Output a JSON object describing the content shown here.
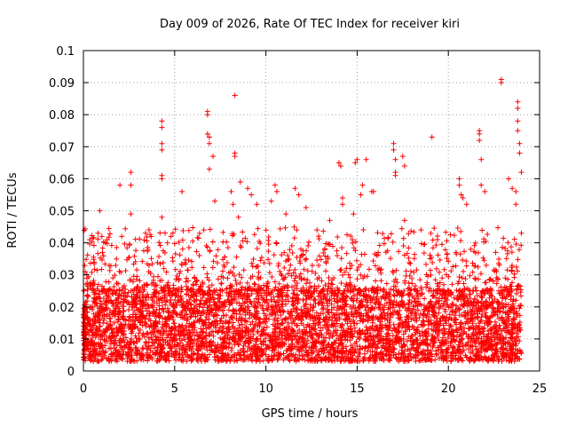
{
  "chart_data": {
    "type": "scatter",
    "title": "Day 009 of 2026, Rate Of TEC Index for receiver kiri",
    "xlabel": "GPS time / hours",
    "ylabel": "ROTI / TECUs",
    "xlim": [
      0,
      25
    ],
    "ylim": [
      0,
      0.1
    ],
    "xticks": [
      0,
      5,
      10,
      15,
      20,
      25
    ],
    "xtick_labels": [
      "0",
      "5",
      "10",
      "15",
      "20",
      "25"
    ],
    "yticks": [
      0,
      0.01,
      0.02,
      0.03,
      0.04,
      0.05,
      0.06,
      0.07,
      0.08,
      0.09,
      0.1
    ],
    "ytick_labels": [
      "0",
      "0.01",
      "0.02",
      "0.03",
      "0.04",
      "0.05",
      "0.06",
      "0.07",
      "0.08",
      "0.09",
      "0.1"
    ],
    "grid": true,
    "marker": "+",
    "color": "#ff0000",
    "data_time_range": [
      0,
      24
    ],
    "bulk_range": [
      0.003,
      0.025
    ],
    "outliers": [
      {
        "x": 0.1,
        "y": 0.031
      },
      {
        "x": 0.8,
        "y": 0.043
      },
      {
        "x": 0.9,
        "y": 0.05
      },
      {
        "x": 1.2,
        "y": 0.04
      },
      {
        "x": 2.0,
        "y": 0.058
      },
      {
        "x": 2.1,
        "y": 0.042
      },
      {
        "x": 2.6,
        "y": 0.062
      },
      {
        "x": 2.6,
        "y": 0.058
      },
      {
        "x": 2.6,
        "y": 0.049
      },
      {
        "x": 3.4,
        "y": 0.043
      },
      {
        "x": 4.3,
        "y": 0.078
      },
      {
        "x": 4.3,
        "y": 0.076
      },
      {
        "x": 4.3,
        "y": 0.071
      },
      {
        "x": 4.3,
        "y": 0.069
      },
      {
        "x": 4.3,
        "y": 0.061
      },
      {
        "x": 4.3,
        "y": 0.06
      },
      {
        "x": 4.3,
        "y": 0.048
      },
      {
        "x": 4.8,
        "y": 0.042
      },
      {
        "x": 5.4,
        "y": 0.056
      },
      {
        "x": 6.6,
        "y": 0.044
      },
      {
        "x": 6.8,
        "y": 0.081
      },
      {
        "x": 6.8,
        "y": 0.08
      },
      {
        "x": 6.8,
        "y": 0.074
      },
      {
        "x": 6.9,
        "y": 0.073
      },
      {
        "x": 6.9,
        "y": 0.071
      },
      {
        "x": 6.9,
        "y": 0.063
      },
      {
        "x": 7.1,
        "y": 0.067
      },
      {
        "x": 7.2,
        "y": 0.053
      },
      {
        "x": 8.1,
        "y": 0.056
      },
      {
        "x": 8.2,
        "y": 0.052
      },
      {
        "x": 8.3,
        "y": 0.086
      },
      {
        "x": 8.3,
        "y": 0.068
      },
      {
        "x": 8.3,
        "y": 0.067
      },
      {
        "x": 8.5,
        "y": 0.048
      },
      {
        "x": 8.6,
        "y": 0.059
      },
      {
        "x": 9.0,
        "y": 0.057
      },
      {
        "x": 9.2,
        "y": 0.055
      },
      {
        "x": 9.5,
        "y": 0.052
      },
      {
        "x": 10.3,
        "y": 0.053
      },
      {
        "x": 10.5,
        "y": 0.058
      },
      {
        "x": 10.6,
        "y": 0.056
      },
      {
        "x": 11.1,
        "y": 0.049
      },
      {
        "x": 11.6,
        "y": 0.057
      },
      {
        "x": 11.8,
        "y": 0.055
      },
      {
        "x": 12.2,
        "y": 0.051
      },
      {
        "x": 12.8,
        "y": 0.044
      },
      {
        "x": 13.5,
        "y": 0.047
      },
      {
        "x": 14.0,
        "y": 0.065
      },
      {
        "x": 14.1,
        "y": 0.064
      },
      {
        "x": 14.2,
        "y": 0.054
      },
      {
        "x": 14.2,
        "y": 0.052
      },
      {
        "x": 14.8,
        "y": 0.049
      },
      {
        "x": 14.9,
        "y": 0.065
      },
      {
        "x": 15.0,
        "y": 0.066
      },
      {
        "x": 15.2,
        "y": 0.055
      },
      {
        "x": 15.3,
        "y": 0.058
      },
      {
        "x": 15.5,
        "y": 0.066
      },
      {
        "x": 15.8,
        "y": 0.056
      },
      {
        "x": 15.9,
        "y": 0.056
      },
      {
        "x": 17.0,
        "y": 0.071
      },
      {
        "x": 17.0,
        "y": 0.069
      },
      {
        "x": 17.1,
        "y": 0.066
      },
      {
        "x": 17.1,
        "y": 0.062
      },
      {
        "x": 17.1,
        "y": 0.061
      },
      {
        "x": 17.5,
        "y": 0.067
      },
      {
        "x": 17.6,
        "y": 0.064
      },
      {
        "x": 17.6,
        "y": 0.047
      },
      {
        "x": 18.5,
        "y": 0.044
      },
      {
        "x": 19.1,
        "y": 0.073
      },
      {
        "x": 19.4,
        "y": 0.041
      },
      {
        "x": 20.6,
        "y": 0.06
      },
      {
        "x": 20.6,
        "y": 0.058
      },
      {
        "x": 20.7,
        "y": 0.055
      },
      {
        "x": 20.8,
        "y": 0.054
      },
      {
        "x": 21.0,
        "y": 0.052
      },
      {
        "x": 21.7,
        "y": 0.075
      },
      {
        "x": 21.7,
        "y": 0.074
      },
      {
        "x": 21.7,
        "y": 0.072
      },
      {
        "x": 21.8,
        "y": 0.066
      },
      {
        "x": 21.8,
        "y": 0.058
      },
      {
        "x": 22.0,
        "y": 0.056
      },
      {
        "x": 22.9,
        "y": 0.09
      },
      {
        "x": 22.9,
        "y": 0.091
      },
      {
        "x": 23.3,
        "y": 0.06
      },
      {
        "x": 23.5,
        "y": 0.057
      },
      {
        "x": 23.7,
        "y": 0.056
      },
      {
        "x": 23.7,
        "y": 0.052
      },
      {
        "x": 23.8,
        "y": 0.084
      },
      {
        "x": 23.8,
        "y": 0.082
      },
      {
        "x": 23.8,
        "y": 0.078
      },
      {
        "x": 23.8,
        "y": 0.075
      },
      {
        "x": 23.9,
        "y": 0.071
      },
      {
        "x": 23.9,
        "y": 0.068
      },
      {
        "x": 24.0,
        "y": 0.062
      },
      {
        "x": 24.0,
        "y": 0.043
      }
    ]
  }
}
